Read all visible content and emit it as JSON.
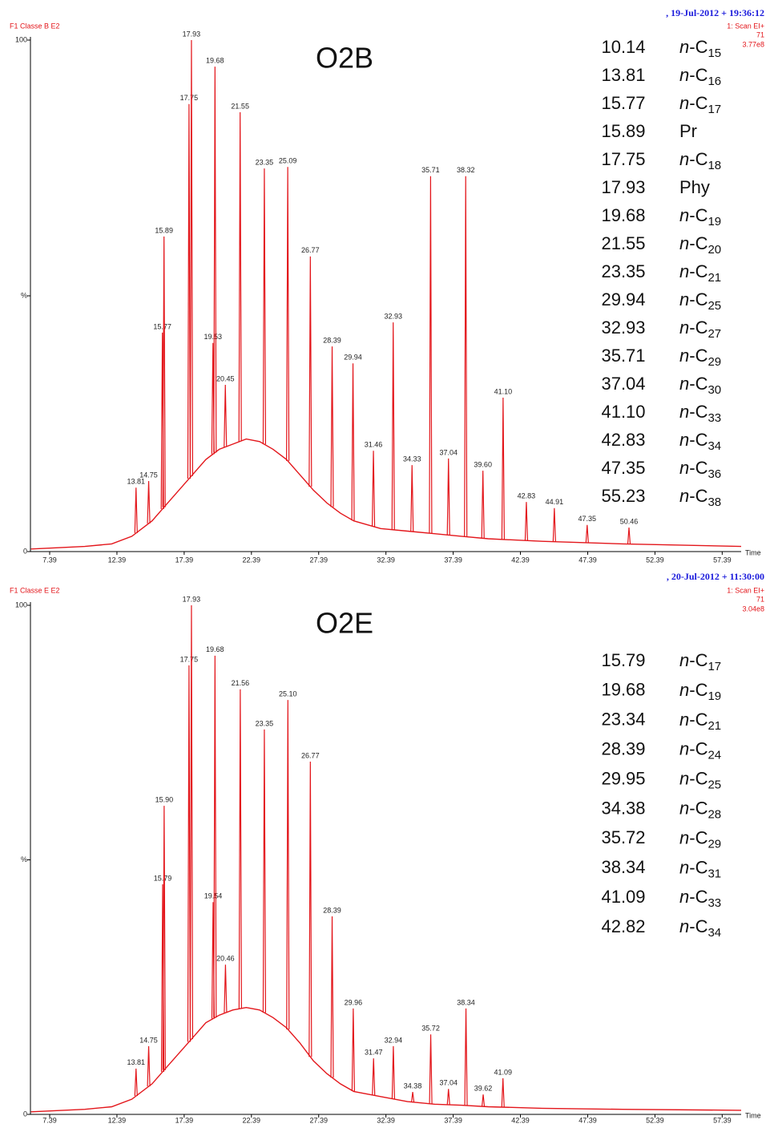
{
  "chart_data": [
    {
      "type": "line",
      "title": "O2B",
      "color": "#e3161b",
      "grid": false,
      "header": {
        "run": "F1 Classe B E2",
        "date": ", 19-Jul-2012 + 19:36:12",
        "scan": "1: Scan EI+",
        "mass": "71",
        "intensity": "3.77e8"
      },
      "xlabel": "Time",
      "xlim": [
        5.96,
        58.8
      ],
      "xticks": [
        7.39,
        12.39,
        17.39,
        22.39,
        27.39,
        32.39,
        37.39,
        42.39,
        47.39,
        52.39,
        57.39
      ],
      "ylim": [
        0,
        100
      ],
      "yticks": [
        0,
        {
          "value": 50,
          "label": "%"
        },
        100
      ],
      "baseline": {
        "x": [
          6,
          10,
          12,
          13.5,
          15,
          16,
          17,
          18,
          19,
          20,
          21,
          22,
          23,
          24,
          25,
          26,
          27,
          28,
          29,
          30,
          32,
          34,
          36,
          38,
          40,
          44,
          50,
          58.8
        ],
        "values": [
          0.5,
          1,
          1.5,
          3,
          6,
          9,
          12,
          15,
          18,
          20,
          21,
          22,
          21.5,
          20,
          18,
          15,
          12,
          9.5,
          7.5,
          6,
          4.5,
          4,
          3.5,
          3,
          2.5,
          2,
          1.5,
          1
        ]
      },
      "peaks": {
        "x": [
          13.81,
          14.75,
          15.77,
          15.89,
          17.75,
          17.93,
          19.53,
          19.68,
          20.45,
          21.55,
          23.35,
          25.09,
          26.77,
          28.39,
          29.94,
          31.46,
          32.93,
          34.33,
          35.71,
          37.04,
          38.32,
          39.6,
          41.1,
          42.83,
          44.91,
          47.35,
          50.46
        ],
        "x_labels": [
          "13.81",
          "14.75",
          "15.77",
          "15.89",
          "17.75",
          "17.93",
          "19.53",
          "19.68",
          "20.45",
          "21.55",
          "23.35",
          "25.09",
          "26.77",
          "28.39",
          "29.94",
          "31.46",
          "32.93",
          "34.33",
          "35.71",
          "37.04",
          "38.32",
          "39.60",
          "41.10",
          "42.83",
          "44.91",
          "47.35",
          "50.46"
        ],
        "values": [
          12.5,
          13.8,
          42.8,
          61.6,
          87.5,
          100,
          40.8,
          94.8,
          32.6,
          85.9,
          74.9,
          75.2,
          57.7,
          40.1,
          36.8,
          19.7,
          44.8,
          16.9,
          73.4,
          18.2,
          73.4,
          15.8,
          30.1,
          9.7,
          8.5,
          5.2,
          4.7
        ]
      },
      "peak_table": [
        {
          "time": "10.14",
          "compound": {
            "italic": "n",
            "text": "-C",
            "subscript": "15"
          }
        },
        {
          "time": "13.81",
          "compound": {
            "italic": "n",
            "text": "-C",
            "subscript": "16"
          }
        },
        {
          "time": "15.77",
          "compound": {
            "italic": "n",
            "text": "-C",
            "subscript": "17"
          }
        },
        {
          "time": "15.89",
          "compound": {
            "text": "Pr"
          }
        },
        {
          "time": "17.75",
          "compound": {
            "italic": "n",
            "text": "-C",
            "subscript": "18"
          }
        },
        {
          "time": "17.93",
          "compound": {
            "text": "Phy"
          }
        },
        {
          "time": "19.68",
          "compound": {
            "italic": "n",
            "text": "-C",
            "subscript": "19"
          }
        },
        {
          "time": "21.55",
          "compound": {
            "italic": "n",
            "text": "-C",
            "subscript": "20"
          }
        },
        {
          "time": "23.35",
          "compound": {
            "italic": "n",
            "text": "-C",
            "subscript": "21"
          }
        },
        {
          "time": "29.94",
          "compound": {
            "italic": "n",
            "text": "-C",
            "subscript": "25"
          }
        },
        {
          "time": "32.93",
          "compound": {
            "italic": "n",
            "text": "-C",
            "subscript": "27"
          }
        },
        {
          "time": "35.71",
          "compound": {
            "italic": "n",
            "text": "-C",
            "subscript": "29"
          }
        },
        {
          "time": "37.04",
          "compound": {
            "italic": "n",
            "text": "-C",
            "subscript": "30"
          }
        },
        {
          "time": "41.10",
          "compound": {
            "italic": "n",
            "text": "-C",
            "subscript": "33"
          }
        },
        {
          "time": "42.83",
          "compound": {
            "italic": "n",
            "text": "-C",
            "subscript": "34"
          }
        },
        {
          "time": "47.35",
          "compound": {
            "italic": "n",
            "text": "-C",
            "subscript": "36"
          }
        },
        {
          "time": "55.23",
          "compound": {
            "italic": "n",
            "text": "-C",
            "subscript": "38"
          }
        }
      ]
    },
    {
      "type": "line",
      "title": "O2E",
      "color": "#e3161b",
      "grid": false,
      "header": {
        "run": "F1 Classe E E2",
        "date": ", 20-Jul-2012 + 11:30:00",
        "scan": "1: Scan EI+",
        "mass": "71",
        "intensity": "3.04e8"
      },
      "xlabel": "Time",
      "xlim": [
        5.96,
        58.8
      ],
      "xticks": [
        7.39,
        12.39,
        17.39,
        22.39,
        27.39,
        32.39,
        37.39,
        42.39,
        47.39,
        52.39,
        57.39
      ],
      "ylim": [
        0,
        100
      ],
      "yticks": [
        0,
        {
          "value": 50,
          "label": "%"
        },
        100
      ],
      "baseline": {
        "x": [
          6,
          10,
          12,
          13.5,
          15,
          16,
          17,
          18,
          19,
          20,
          21,
          22,
          23,
          24,
          25,
          26,
          27,
          28,
          29,
          30,
          32,
          34,
          36,
          38,
          40,
          44,
          50,
          58.8
        ],
        "values": [
          0.5,
          1,
          1.5,
          3,
          6,
          9,
          12,
          15,
          18,
          19.5,
          20.5,
          21,
          20.5,
          19,
          17,
          14,
          10.5,
          8,
          6,
          4.5,
          3.5,
          2.5,
          2,
          1.8,
          1.5,
          1.2,
          1,
          0.8
        ]
      },
      "peaks": {
        "x": [
          13.81,
          14.75,
          15.79,
          15.9,
          17.75,
          17.93,
          19.54,
          19.68,
          20.46,
          21.56,
          23.35,
          25.1,
          26.77,
          28.39,
          29.96,
          31.47,
          32.94,
          34.38,
          35.72,
          37.04,
          38.34,
          39.62,
          41.09
        ],
        "x_labels": [
          "13.81",
          "14.75",
          "15.79",
          "15.90",
          "17.75",
          "17.93",
          "19.54",
          "19.68",
          "20.46",
          "21.56",
          "23.35",
          "25.10",
          "26.77",
          "28.39",
          "29.96",
          "31.47",
          "32.94",
          "34.38",
          "35.72",
          "37.04",
          "38.34",
          "39.62",
          "41.09"
        ],
        "values": [
          9.0,
          13.4,
          45.2,
          60.6,
          88.2,
          100,
          41.7,
          90.1,
          29.4,
          83.5,
          75.6,
          81.4,
          69.3,
          38.9,
          20.8,
          11.0,
          13.4,
          4.4,
          15.7,
          5.0,
          20.8,
          3.9,
          7.1
        ]
      },
      "peak_table": [
        {
          "time": "15.79",
          "compound": {
            "italic": "n",
            "text": "-C",
            "subscript": "17"
          }
        },
        {
          "time": "19.68",
          "compound": {
            "italic": "n",
            "text": "-C",
            "subscript": "19"
          }
        },
        {
          "time": "23.34",
          "compound": {
            "italic": "n",
            "text": "-C",
            "subscript": "21"
          }
        },
        {
          "time": "28.39",
          "compound": {
            "italic": "n",
            "text": "-C",
            "subscript": "24"
          }
        },
        {
          "time": "29.95",
          "compound": {
            "italic": "n",
            "text": "-C",
            "subscript": "25"
          }
        },
        {
          "time": "34.38",
          "compound": {
            "italic": "n",
            "text": "-C",
            "subscript": "28"
          }
        },
        {
          "time": "35.72",
          "compound": {
            "italic": "n",
            "text": "-C",
            "subscript": "29"
          }
        },
        {
          "time": "38.34",
          "compound": {
            "italic": "n",
            "text": "-C",
            "subscript": "31"
          }
        },
        {
          "time": "41.09",
          "compound": {
            "italic": "n",
            "text": "-C",
            "subscript": "33"
          }
        },
        {
          "time": "42.82",
          "compound": {
            "italic": "n",
            "text": "-C",
            "subscript": "34"
          }
        }
      ]
    }
  ]
}
